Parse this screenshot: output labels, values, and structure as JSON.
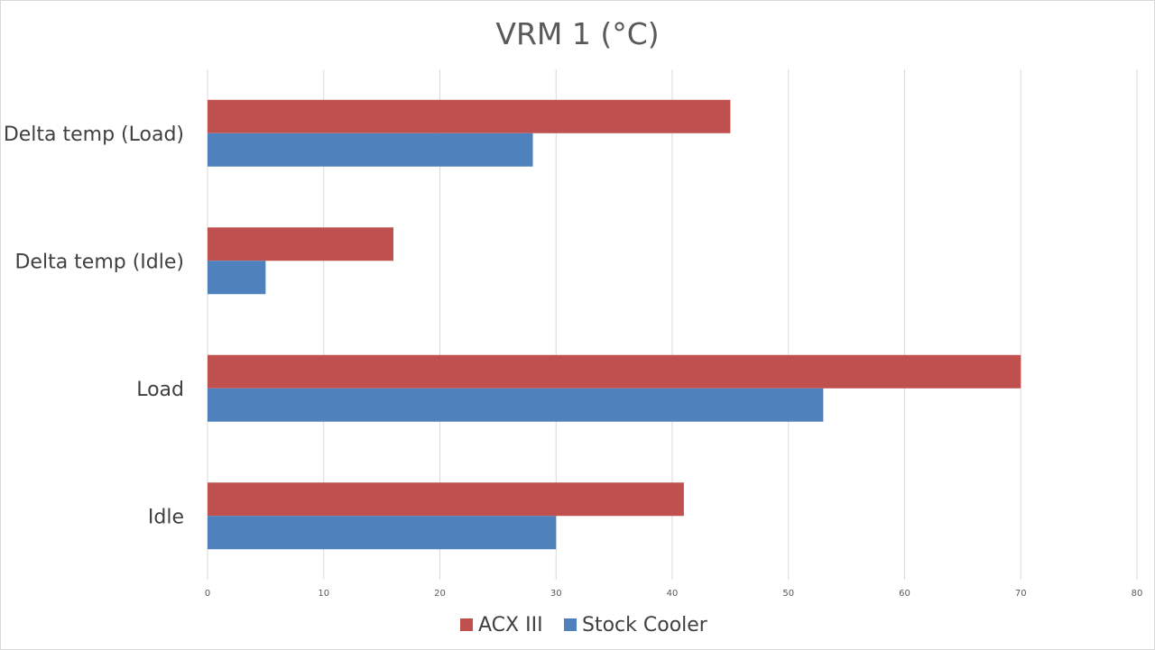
{
  "chart_data": {
    "type": "bar",
    "orientation": "horizontal",
    "title": "VRM 1 (°C)",
    "categories": [
      "Delta temp (Load)",
      "Delta temp (Idle)",
      "Load",
      "Idle"
    ],
    "series": [
      {
        "name": "ACX III",
        "color": "#c0504d",
        "values": [
          45,
          16,
          70,
          41
        ]
      },
      {
        "name": "Stock Cooler",
        "color": "#4f81bd",
        "values": [
          28,
          5,
          53,
          30
        ]
      }
    ],
    "xlim": [
      0,
      80
    ],
    "xticks": [
      0,
      10,
      20,
      30,
      40,
      50,
      60,
      70,
      80
    ],
    "grid": true,
    "legend_position": "bottom"
  }
}
